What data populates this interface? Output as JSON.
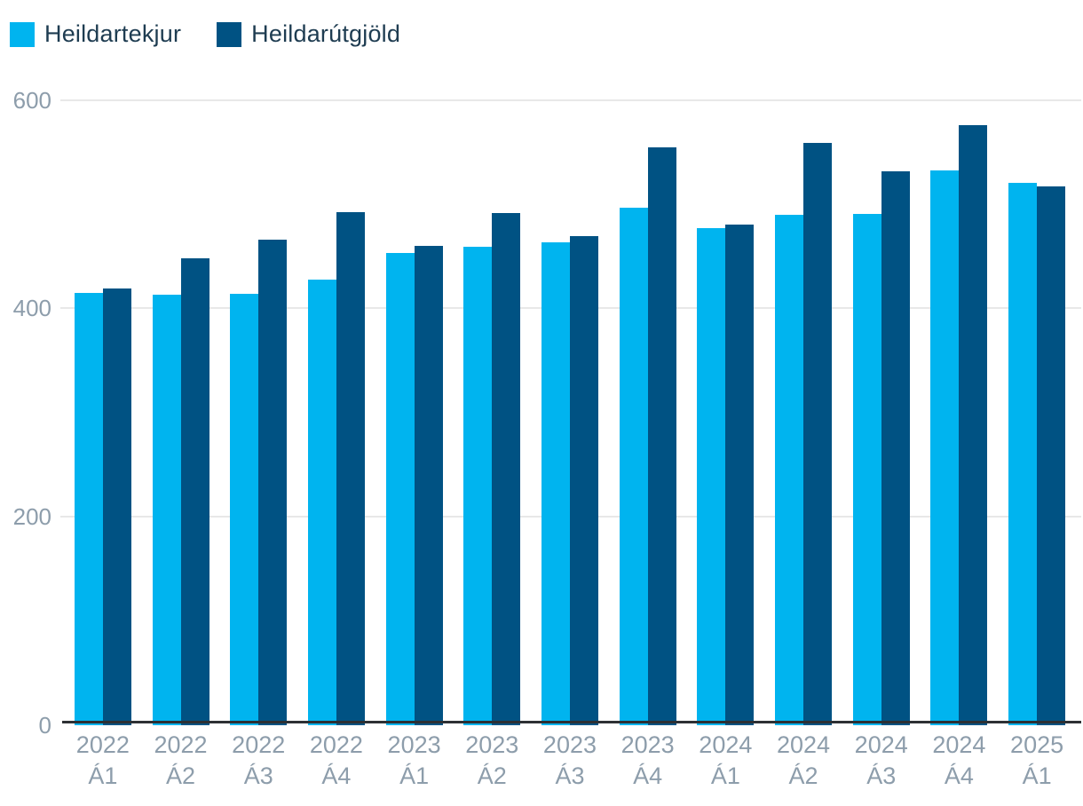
{
  "chart_data": {
    "type": "bar",
    "title": "",
    "categories": [
      "2022 Á1",
      "2022 Á2",
      "2022 Á3",
      "2022 Á4",
      "2023 Á1",
      "2023 Á2",
      "2023 Á3",
      "2023 Á4",
      "2024 Á1",
      "2024 Á2",
      "2024 Á3",
      "2024 Á4",
      "2025 Á1"
    ],
    "series": [
      {
        "name": "Heildartekjur",
        "color": "#00b4ef",
        "values": [
          415,
          413,
          414,
          428,
          453,
          459,
          464,
          497,
          477,
          490,
          491,
          533,
          521
        ]
      },
      {
        "name": "Heildarútgjöld",
        "color": "#005283",
        "values": [
          419,
          448,
          466,
          493,
          460,
          492,
          470,
          555,
          481,
          559,
          532,
          576,
          517
        ]
      }
    ],
    "ylim": [
      0,
      600
    ],
    "y_ticks": [
      600,
      400,
      200,
      0
    ],
    "xlabel": "",
    "ylabel": "",
    "grid": "horizontal",
    "legend_position": "top-left"
  },
  "colors": {
    "axis_line": "#2d3034",
    "grid_line": "#e8e8e8",
    "tick_label": "#8d9dab",
    "legend_text": "#1e3c51",
    "background": "#ffffff"
  }
}
